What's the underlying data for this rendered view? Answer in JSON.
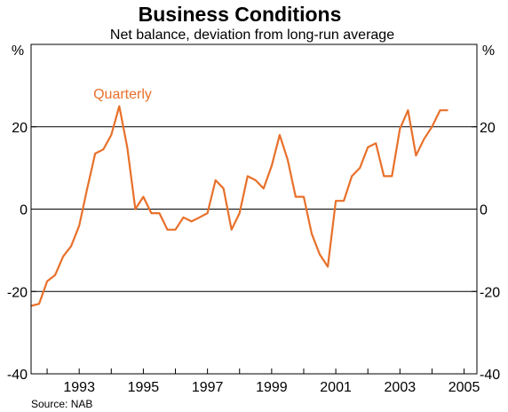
{
  "chart_data": {
    "type": "line",
    "title": "Business Conditions",
    "subtitle": "Net balance, deviation from long-run average",
    "unit_left": "%",
    "unit_right": "%",
    "source": "Source: NAB",
    "xlim": [
      1991.5,
      2005.4
    ],
    "ylim": [
      -40,
      40
    ],
    "y_ticks": [
      -40,
      -20,
      0,
      20
    ],
    "y_tick_labels": [
      "-40",
      "-20",
      "0",
      "20"
    ],
    "x_ticks": [
      1993,
      1995,
      1997,
      1999,
      2001,
      2003,
      2005
    ],
    "x_tick_labels": [
      "1993",
      "1995",
      "1997",
      "1999",
      "2001",
      "2003",
      "2005"
    ],
    "gridlines_y": [
      -20,
      0,
      20
    ],
    "series": [
      {
        "name": "Quarterly",
        "color": "#E8702A",
        "x": [
          1991.5,
          1991.75,
          1992.0,
          1992.25,
          1992.5,
          1992.75,
          1993.0,
          1993.25,
          1993.5,
          1993.75,
          1994.0,
          1994.25,
          1994.5,
          1994.75,
          1995.0,
          1995.25,
          1995.5,
          1995.75,
          1996.0,
          1996.25,
          1996.5,
          1996.75,
          1997.0,
          1997.25,
          1997.5,
          1997.75,
          1998.0,
          1998.25,
          1998.5,
          1998.75,
          1999.0,
          1999.25,
          1999.5,
          1999.75,
          2000.0,
          2000.25,
          2000.5,
          2000.75,
          2001.0,
          2001.25,
          2001.5,
          2001.75,
          2002.0,
          2002.25,
          2002.5,
          2002.75,
          2003.0,
          2003.25,
          2003.5,
          2003.75,
          2004.0,
          2004.25,
          2004.5
        ],
        "values": [
          -23.5,
          -23,
          -17.5,
          -16,
          -11.5,
          -9,
          -4,
          5,
          13.5,
          14.5,
          18,
          25,
          15,
          0,
          3,
          -1,
          -1,
          -5,
          -5,
          -2,
          -3,
          -2,
          -1,
          7,
          5,
          -5,
          -1,
          8,
          7,
          5,
          10.5,
          18,
          12,
          3,
          3,
          -6,
          -11,
          -14,
          2,
          2,
          8,
          10,
          15,
          16,
          8,
          8,
          19.5,
          24,
          13,
          17,
          20,
          24,
          24
        ]
      }
    ]
  }
}
